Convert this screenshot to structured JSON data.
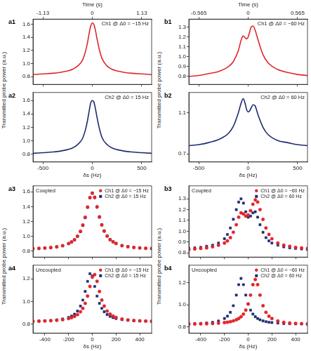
{
  "chart_data": [
    {
      "type": "line",
      "title": "a1",
      "x": [
        -600,
        -500,
        -400,
        -300,
        -200,
        -150,
        -100,
        -70,
        -50,
        -30,
        -15,
        0,
        15,
        30,
        50,
        70,
        100,
        150,
        200,
        300,
        400,
        500,
        600
      ],
      "xlim": [
        -600,
        600
      ],
      "xticks": [
        -500,
        0,
        500
      ],
      "x2lim": [
        -1.356,
        1.356
      ],
      "x2ticks": [
        -1.13,
        0,
        1.13
      ],
      "x2label": "Time (s)",
      "ylim": [
        0.68,
        1.68
      ],
      "yticks": [
        0.8,
        {
          "value": 1,
          "label": "1.0"
        },
        1.2,
        1.4,
        1.6
      ],
      "ylabel": "Transmitted probe power (a.u.)",
      "tick_labels": "y",
      "grid": false,
      "annotations": [
        "Ch1 @ Δ0 = −15 Hz"
      ],
      "series": [
        {
          "color": "#e0262c",
          "values": [
            0.83,
            0.84,
            0.85,
            0.87,
            0.91,
            0.96,
            1.05,
            1.18,
            1.31,
            1.48,
            1.58,
            1.62,
            1.6,
            1.52,
            1.36,
            1.22,
            1.07,
            0.96,
            0.91,
            0.87,
            0.85,
            0.84,
            0.83
          ]
        }
      ]
    },
    {
      "type": "line",
      "title": "a2",
      "x": [
        -600,
        -500,
        -400,
        -300,
        -200,
        -150,
        -100,
        -70,
        -50,
        -30,
        -15,
        0,
        15,
        30,
        50,
        70,
        100,
        150,
        200,
        300,
        400,
        500,
        600
      ],
      "xlim": [
        -600,
        600
      ],
      "xticks": [
        -500,
        0,
        500
      ],
      "xlabel": "δs (Hz)",
      "ylim": [
        0.68,
        1.72
      ],
      "yticks": [
        0.8,
        {
          "value": 1,
          "label": "1.0"
        },
        1.2,
        1.4,
        1.6
      ],
      "grid": false,
      "annotations": [
        "Ch2 @ Δ0 = 15 Hz"
      ],
      "series": [
        {
          "color": "#1c2b70",
          "values": [
            0.81,
            0.82,
            0.83,
            0.85,
            0.89,
            0.94,
            1.03,
            1.16,
            1.29,
            1.46,
            1.57,
            1.6,
            1.58,
            1.49,
            1.33,
            1.19,
            1.04,
            0.94,
            0.89,
            0.85,
            0.83,
            0.82,
            0.81
          ]
        }
      ]
    },
    {
      "type": "line",
      "title": "b1",
      "x": [
        -600,
        -500,
        -400,
        -300,
        -200,
        -150,
        -100,
        -70,
        -50,
        -30,
        -15,
        0,
        15,
        30,
        50,
        70,
        100,
        150,
        200,
        300,
        400,
        500,
        600
      ],
      "xlim": [
        -600,
        600
      ],
      "xticks": [
        -500,
        0,
        500
      ],
      "x2lim": [
        -0.678,
        0.678
      ],
      "x2ticks": [
        -0.565,
        0,
        0.565
      ],
      "x2label": "Time (s)",
      "ylim": [
        0.72,
        1.38
      ],
      "yticks": [
        0.8,
        0.9,
        {
          "value": 1,
          "label": "1.0"
        },
        1.1,
        1.2,
        1.3
      ],
      "ylabel": "Transmitted probe power (a.u.)",
      "tick_labels": "y",
      "grid": false,
      "annotations": [
        "Ch1 @ Δ0 = −60 Hz"
      ],
      "series": [
        {
          "color": "#e0262c",
          "values": [
            0.8,
            0.81,
            0.83,
            0.85,
            0.9,
            0.95,
            1.06,
            1.17,
            1.21,
            1.19,
            1.18,
            1.2,
            1.25,
            1.3,
            1.31,
            1.27,
            1.17,
            1.02,
            0.94,
            0.87,
            0.84,
            0.82,
            0.81
          ]
        }
      ]
    },
    {
      "type": "line",
      "title": "b2",
      "x": [
        -600,
        -500,
        -400,
        -300,
        -200,
        -150,
        -100,
        -70,
        -50,
        -30,
        -15,
        0,
        15,
        30,
        50,
        70,
        100,
        150,
        200,
        300,
        400,
        500,
        600
      ],
      "xlim": [
        -600,
        600
      ],
      "xticks": [
        -500,
        0,
        500
      ],
      "xlabel": "δs (Hz)",
      "ylim": [
        0.62,
        1.3
      ],
      "yticks": [
        0.7,
        1.1
      ],
      "grid": false,
      "annotations": [
        "Ch2 @ Δ0 = 60 Hz"
      ],
      "series": [
        {
          "color": "#1c2b70",
          "values": [
            0.78,
            0.79,
            0.81,
            0.84,
            0.9,
            0.97,
            1.1,
            1.2,
            1.24,
            1.19,
            1.13,
            1.11,
            1.12,
            1.15,
            1.18,
            1.17,
            1.08,
            0.96,
            0.89,
            0.83,
            0.81,
            0.79,
            0.78
          ]
        }
      ]
    },
    {
      "type": "scatter",
      "title": "a3",
      "x": [
        -500,
        -450,
        -400,
        -350,
        -300,
        -250,
        -200,
        -175,
        -150,
        -125,
        -100,
        -80,
        -60,
        -40,
        -20,
        0,
        20,
        40,
        60,
        80,
        100,
        125,
        150,
        175,
        200,
        250,
        300,
        350,
        400,
        450,
        500
      ],
      "xlim": [
        -500,
        500
      ],
      "xticks": [
        -400,
        -200,
        0,
        200,
        400
      ],
      "ylim": [
        0.72,
        1.68
      ],
      "yticks": [
        0.8,
        {
          "value": 1,
          "label": "1.0"
        },
        1.2,
        1.4,
        1.6
      ],
      "ylabel": "Transmitted probe power (a.u.)",
      "tick_labels": "y",
      "grid": false,
      "legend": "upper right",
      "annotations": [
        "Coupled"
      ],
      "series": [
        {
          "name": "Ch1 @ Δ0 = −15 Hz",
          "color": "#e0262c",
          "marker": "circle",
          "values": [
            0.835,
            0.838,
            0.843,
            0.849,
            0.859,
            0.874,
            0.903,
            0.925,
            0.954,
            1.002,
            1.069,
            1.152,
            1.258,
            1.394,
            1.522,
            1.58,
            1.522,
            1.394,
            1.258,
            1.152,
            1.069,
            1.002,
            0.954,
            0.925,
            0.903,
            0.874,
            0.859,
            0.849,
            0.843,
            0.838,
            0.835
          ]
        },
        {
          "name": "Ch2 @ Δ0 = 15 Hz",
          "color": "#1c2b70",
          "marker": "square",
          "values": [
            0.83,
            0.834,
            0.84,
            0.846,
            0.856,
            0.872,
            0.9,
            0.922,
            0.952,
            0.998,
            1.062,
            1.145,
            1.25,
            1.39,
            1.52,
            1.585,
            1.53,
            1.4,
            1.265,
            1.158,
            1.074,
            1.006,
            0.957,
            0.928,
            0.905,
            0.876,
            0.861,
            0.85,
            0.844,
            0.839,
            0.836
          ]
        }
      ]
    },
    {
      "type": "scatter",
      "title": "a4",
      "x": [
        -500,
        -450,
        -400,
        -350,
        -300,
        -250,
        -200,
        -175,
        -150,
        -125,
        -100,
        -80,
        -60,
        -40,
        -20,
        0,
        20,
        40,
        60,
        80,
        100,
        125,
        150,
        175,
        200,
        250,
        300,
        350,
        400,
        450,
        500
      ],
      "xlim": [
        -500,
        500
      ],
      "xticks": [
        -400,
        -200,
        0,
        200,
        400
      ],
      "xlabel": "δs (Hz)",
      "ylim": [
        0.72,
        1.32
      ],
      "yticks": [
        0.8,
        {
          "value": 1,
          "label": "1.0"
        },
        1.2
      ],
      "grid": false,
      "legend": "upper right",
      "annotations": [
        "Uncoupled"
      ],
      "series": [
        {
          "name": "Ch1 @ Δ0 = −15 Hz",
          "color": "#e0262c",
          "marker": "circle",
          "values": [
            0.826,
            0.827,
            0.829,
            0.831,
            0.835,
            0.84,
            0.85,
            0.858,
            0.869,
            0.885,
            0.91,
            0.94,
            0.984,
            1.048,
            1.133,
            1.215,
            1.237,
            1.178,
            1.089,
            1.013,
            0.96,
            0.916,
            0.889,
            0.872,
            0.86,
            0.846,
            0.838,
            0.833,
            0.83,
            0.828,
            0.826
          ]
        },
        {
          "name": "Ch2 @ Δ0 = 15 Hz",
          "color": "#1c2b70",
          "marker": "square",
          "values": [
            0.826,
            0.828,
            0.83,
            0.833,
            0.838,
            0.846,
            0.86,
            0.872,
            0.889,
            0.916,
            0.96,
            1.013,
            1.089,
            1.178,
            1.245,
            1.225,
            1.133,
            1.048,
            0.984,
            0.94,
            0.91,
            0.885,
            0.869,
            0.858,
            0.85,
            0.84,
            0.835,
            0.831,
            0.829,
            0.827,
            0.826
          ]
        }
      ]
    },
    {
      "type": "scatter",
      "title": "b3",
      "x": [
        -500,
        -450,
        -400,
        -350,
        -300,
        -250,
        -200,
        -175,
        -150,
        -125,
        -100,
        -80,
        -60,
        -40,
        -20,
        0,
        20,
        40,
        60,
        80,
        100,
        125,
        150,
        175,
        200,
        250,
        300,
        350,
        400,
        450,
        500
      ],
      "xlim": [
        -500,
        500
      ],
      "xticks": [
        -400,
        -200,
        0,
        200,
        400
      ],
      "ylim": [
        0.76,
        1.42
      ],
      "yticks": [
        0.8,
        0.9,
        {
          "value": 1,
          "label": "1.0"
        },
        1.1,
        1.2,
        1.3
      ],
      "ylabel": "Transmitted probe power (a.u.)",
      "tick_labels": "y",
      "grid": false,
      "legend": "upper right",
      "annotations": [
        "Coupled"
      ],
      "series": [
        {
          "name": "Ch1 @ Δ0 = −60 Hz",
          "color": "#e0262c",
          "marker": "circle",
          "values": [
            0.83,
            0.835,
            0.84,
            0.845,
            0.855,
            0.87,
            0.89,
            0.91,
            0.94,
            0.99,
            1.06,
            1.13,
            1.17,
            1.16,
            1.14,
            1.15,
            1.19,
            1.25,
            1.29,
            1.27,
            1.2,
            1.11,
            1.03,
            0.97,
            0.93,
            0.89,
            0.87,
            0.86,
            0.85,
            0.845,
            0.84
          ]
        },
        {
          "name": "Ch2 @ Δ0 = 60 Hz",
          "color": "#1c2b70",
          "marker": "square",
          "values": [
            0.84,
            0.845,
            0.85,
            0.86,
            0.87,
            0.89,
            0.93,
            0.97,
            1.03,
            1.11,
            1.2,
            1.27,
            1.3,
            1.26,
            1.18,
            1.13,
            1.14,
            1.17,
            1.18,
            1.13,
            1.06,
            0.99,
            0.94,
            0.91,
            0.89,
            0.87,
            0.855,
            0.845,
            0.84,
            0.835,
            0.83
          ]
        }
      ]
    },
    {
      "type": "scatter",
      "title": "b4",
      "x": [
        -500,
        -450,
        -400,
        -350,
        -300,
        -250,
        -200,
        -175,
        -150,
        -125,
        -100,
        -80,
        -60,
        -40,
        -20,
        0,
        20,
        40,
        60,
        80,
        100,
        125,
        150,
        175,
        200,
        250,
        300,
        350,
        400,
        450,
        500
      ],
      "xlim": [
        -500,
        500
      ],
      "xticks": [
        -400,
        -200,
        0,
        200,
        400
      ],
      "xlabel": "δs (Hz)",
      "ylim": [
        0.74,
        1.36
      ],
      "yticks": [
        0.8,
        {
          "value": 1,
          "label": "1.0"
        },
        1.2
      ],
      "grid": false,
      "legend": "upper right",
      "annotations": [
        "Uncoupled"
      ],
      "series": [
        {
          "name": "Ch1 @ Δ0 = −60 Hz",
          "color": "#e0262c",
          "marker": "circle",
          "values": [
            0.824,
            0.825,
            0.826,
            0.827,
            0.829,
            0.833,
            0.838,
            0.841,
            0.846,
            0.853,
            0.863,
            0.875,
            0.891,
            0.915,
            0.951,
            1.007,
            1.088,
            1.183,
            1.23,
            1.183,
            1.088,
            0.991,
            0.931,
            0.896,
            0.875,
            0.852,
            0.84,
            0.834,
            0.83,
            0.828,
            0.826
          ]
        },
        {
          "name": "Ch2 @ Δ0 = 60 Hz",
          "color": "#1c2b70",
          "marker": "square",
          "values": [
            0.826,
            0.828,
            0.83,
            0.834,
            0.84,
            0.852,
            0.875,
            0.896,
            0.931,
            0.991,
            1.088,
            1.183,
            1.24,
            1.183,
            1.088,
            1.007,
            0.951,
            0.915,
            0.891,
            0.875,
            0.863,
            0.853,
            0.846,
            0.841,
            0.838,
            0.833,
            0.829,
            0.827,
            0.826,
            0.825,
            0.824
          ]
        }
      ]
    }
  ]
}
